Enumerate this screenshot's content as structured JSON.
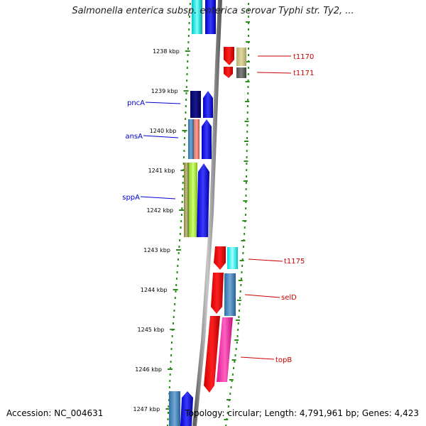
{
  "title": "Salmonella enterica subsp. enterica serovar Typhi str. Ty2, ...",
  "footer": {
    "accession": "Accession: NC_004631",
    "topology": "Topology: circular; Length: 4,791,961 bp; Genes: 4,423"
  },
  "ticks": [
    "1238 kbp",
    "1239 kbp",
    "1240 kbp",
    "1241 kbp",
    "1242 kbp",
    "1243 kbp",
    "1244 kbp",
    "1245 kbp",
    "1246 kbp",
    "1247 kbp"
  ],
  "gene_labels": [
    {
      "name": "t1170",
      "color": "#cc0000"
    },
    {
      "name": "t1171",
      "color": "#cc0000"
    },
    {
      "name": "pncA",
      "color": "#0000cc"
    },
    {
      "name": "ansA",
      "color": "#0000cc"
    },
    {
      "name": "sppA",
      "color": "#0000cc"
    },
    {
      "name": "t1175",
      "color": "#cc0000"
    },
    {
      "name": "selD",
      "color": "#cc0000"
    },
    {
      "name": "topB",
      "color": "#cc0000"
    }
  ],
  "colors": {
    "tick_green": "#2e8b1e",
    "backbone": "#8a8a8a",
    "label_red": "#cc0000",
    "label_blue": "#0000cc"
  }
}
